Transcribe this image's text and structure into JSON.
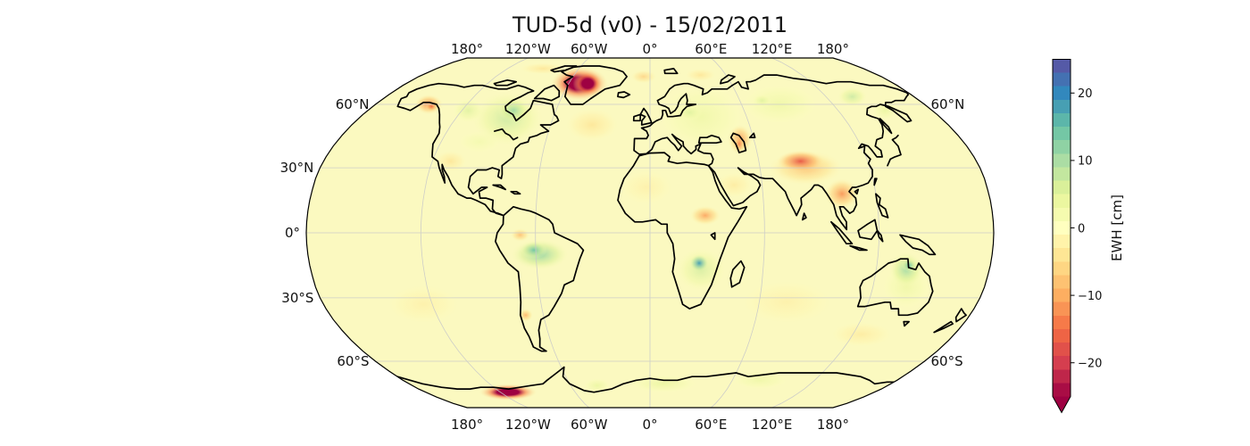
{
  "figure": {
    "title": "TUD-5d (v0) - 15/02/2011",
    "background": "#ffffff"
  },
  "map": {
    "projection": "Robinson",
    "base_color": "#fbf9c0",
    "graticule_color": "#c9c9c9",
    "coastline_color": "#000000",
    "lon_labels": [
      {
        "lon": -180,
        "text": "180°"
      },
      {
        "lon": -120,
        "text": "120°W"
      },
      {
        "lon": -60,
        "text": "60°W"
      },
      {
        "lon": 0,
        "text": "0°"
      },
      {
        "lon": 60,
        "text": "60°E"
      },
      {
        "lon": 120,
        "text": "120°E"
      },
      {
        "lon": 180,
        "text": "180°"
      }
    ],
    "left_lat_labels": [
      {
        "lat": 60,
        "text": "60°N"
      },
      {
        "lat": 30,
        "text": "30°N"
      },
      {
        "lat": 0,
        "text": "0°"
      },
      {
        "lat": -30,
        "text": "30°S"
      },
      {
        "lat": -60,
        "text": "60°S"
      }
    ],
    "right_lat_labels": [
      {
        "lat": 60,
        "text": "60°N"
      },
      {
        "lat": -60,
        "text": "60°S"
      }
    ],
    "graticule_parallels": [
      60,
      30,
      0,
      -30,
      -60
    ],
    "graticule_meridians": [
      -120,
      -60,
      0,
      60,
      120
    ]
  },
  "colorbar": {
    "label": "EWH [cm]",
    "vmin": -25,
    "vmax": 25,
    "extend": "min",
    "colormap_name": "Spectral_r",
    "spectral_anchors": [
      "#9e0142",
      "#d53e4f",
      "#f46d43",
      "#fdae61",
      "#fee08b",
      "#ffffbf",
      "#e6f598",
      "#abdda4",
      "#66c2a5",
      "#3288bd",
      "#5e4fa2"
    ],
    "ticks": [
      {
        "value": 20,
        "text": "20"
      },
      {
        "value": 10,
        "text": "10"
      },
      {
        "value": 0,
        "text": "0"
      },
      {
        "value": -10,
        "text": "−10"
      },
      {
        "value": -20,
        "text": "−20"
      }
    ]
  },
  "chart_data": {
    "type": "heatmap",
    "title": "TUD-5d (v0) - 15/02/2011",
    "variable": "EWH [cm]",
    "date": "15/02/2011",
    "projection": "Robinson",
    "value_range_cm": [
      -25,
      25
    ],
    "background_value_cm": 0,
    "regions": [
      {
        "name": "greenland-ice-sheet",
        "lon": -52,
        "lat": 71,
        "rx_deg": 21,
        "ry_deg": 9.5,
        "value_cm": -27
      },
      {
        "name": "greenland-core",
        "lon": -46,
        "lat": 71,
        "rx_deg": 11,
        "ry_deg": 7,
        "value_cm": -28
      },
      {
        "name": "gulf-of-alaska",
        "lon": -145,
        "lat": 60,
        "rx_deg": 9,
        "ry_deg": 5,
        "value_cm": -13
      },
      {
        "name": "gulf-of-alaska-core",
        "lon": -142,
        "lat": 59,
        "rx_deg": 4,
        "ry_deg": 2.5,
        "value_cm": -15
      },
      {
        "name": "hudson-bay-canada",
        "lon": -88,
        "lat": 53,
        "rx_deg": 22,
        "ry_deg": 13,
        "value_cm": 8
      },
      {
        "name": "hudson-bay-core",
        "lon": -87,
        "lat": 57,
        "rx_deg": 10,
        "ry_deg": 6,
        "value_cm": 11
      },
      {
        "name": "west-canada-green",
        "lon": -116,
        "lat": 57,
        "rx_deg": 10,
        "ry_deg": 6,
        "value_cm": 6
      },
      {
        "name": "us-plains-green",
        "lon": -98,
        "lat": 42,
        "rx_deg": 12,
        "ry_deg": 5,
        "value_cm": 3
      },
      {
        "name": "us-southwest-mexico",
        "lon": -110,
        "lat": 33,
        "rx_deg": 9,
        "ry_deg": 5,
        "value_cm": -5
      },
      {
        "name": "north-atlantic-orange",
        "lon": -35,
        "lat": 50,
        "rx_deg": 16,
        "ry_deg": 8,
        "value_cm": -5
      },
      {
        "name": "greenland-sea-orange",
        "lon": -5,
        "lat": 75,
        "rx_deg": 10,
        "ry_deg": 4,
        "value_cm": -7
      },
      {
        "name": "barents-orange",
        "lon": 40,
        "lat": 76,
        "rx_deg": 12,
        "ry_deg": 4,
        "value_cm": -5
      },
      {
        "name": "arctic-canada-orange",
        "lon": -90,
        "lat": 80,
        "rx_deg": 20,
        "ry_deg": 4,
        "value_cm": -5
      },
      {
        "name": "europe-green",
        "lon": 32,
        "lat": 54,
        "rx_deg": 26,
        "ry_deg": 16,
        "value_cm": 4
      },
      {
        "name": "baltic-teal",
        "lon": 25,
        "lat": 56,
        "rx_deg": 8,
        "ry_deg": 4,
        "value_cm": 6
      },
      {
        "name": "west-siberia-green",
        "lon": 85,
        "lat": 60,
        "rx_deg": 25,
        "ry_deg": 10,
        "value_cm": 4
      },
      {
        "name": "ob-teal",
        "lon": 75,
        "lat": 62,
        "rx_deg": 6,
        "ry_deg": 3,
        "value_cm": 6
      },
      {
        "name": "ne-siberia-teal",
        "lon": 138,
        "lat": 64,
        "rx_deg": 10,
        "ry_deg": 5,
        "value_cm": 8
      },
      {
        "name": "okhotsk-green",
        "lon": 150,
        "lat": 57,
        "rx_deg": 8,
        "ry_deg": 5,
        "value_cm": 5
      },
      {
        "name": "caspian-orange",
        "lon": 52,
        "lat": 43,
        "rx_deg": 7,
        "ry_deg": 7,
        "value_cm": -12
      },
      {
        "name": "caspian-core",
        "lon": 51,
        "lat": 41,
        "rx_deg": 3,
        "ry_deg": 4,
        "value_cm": -13
      },
      {
        "name": "tibet-north-india",
        "lon": 85,
        "lat": 30,
        "rx_deg": 20,
        "ry_deg": 8,
        "value_cm": -9
      },
      {
        "name": "tibet-core",
        "lon": 83,
        "lat": 33,
        "rx_deg": 13,
        "ry_deg": 5,
        "value_cm": -17
      },
      {
        "name": "se-asia-orange",
        "lon": 102,
        "lat": 18,
        "rx_deg": 9,
        "ry_deg": 7,
        "value_cm": -12
      },
      {
        "name": "central-africa-orange",
        "lon": 29,
        "lat": 8,
        "rx_deg": 8,
        "ry_deg": 4.5,
        "value_cm": -11
      },
      {
        "name": "sahara-tint",
        "lon": -2,
        "lat": 21,
        "rx_deg": 14,
        "ry_deg": 8,
        "value_cm": -3
      },
      {
        "name": "arabia-tint",
        "lon": 45,
        "lat": 22,
        "rx_deg": 10,
        "ry_deg": 6,
        "value_cm": -4
      },
      {
        "name": "southern-africa-green",
        "lon": 27,
        "lat": -17,
        "rx_deg": 13,
        "ry_deg": 10,
        "value_cm": 7
      },
      {
        "name": "zambia-blue-core",
        "lon": 26,
        "lat": -14,
        "rx_deg": 5,
        "ry_deg": 4,
        "value_cm": 18
      },
      {
        "name": "amazon-teal",
        "lon": -58,
        "lat": -10,
        "rx_deg": 15,
        "ry_deg": 7,
        "value_cm": 12
      },
      {
        "name": "amazon-core",
        "lon": -61,
        "lat": -8,
        "rx_deg": 7,
        "ry_deg": 4,
        "value_cm": 14
      },
      {
        "name": "nw-amazon-orange",
        "lon": -68,
        "lat": -1,
        "rx_deg": 5,
        "ry_deg": 3,
        "value_cm": -9
      },
      {
        "name": "argentina-orange",
        "lon": -70,
        "lat": -38,
        "rx_deg": 4,
        "ry_deg": 3,
        "value_cm": -10
      },
      {
        "name": "australia-green",
        "lon": 138,
        "lat": -25,
        "rx_deg": 13,
        "ry_deg": 10,
        "value_cm": 4
      },
      {
        "name": "north-australia-teal",
        "lon": 136,
        "lat": -17,
        "rx_deg": 9,
        "ry_deg": 8,
        "value_cm": 11
      },
      {
        "name": "carpentaria-core",
        "lon": 137,
        "lat": -15,
        "rx_deg": 4,
        "ry_deg": 3,
        "value_cm": 14
      },
      {
        "name": "indian-ocean-tint",
        "lon": 75,
        "lat": -32,
        "rx_deg": 25,
        "ry_deg": 10,
        "value_cm": -3
      },
      {
        "name": "south-pacific-tint",
        "lon": -125,
        "lat": -33,
        "rx_deg": 20,
        "ry_deg": 9,
        "value_cm": -3
      },
      {
        "name": "south-of-australia-tint",
        "lon": 125,
        "lat": -47,
        "rx_deg": 18,
        "ry_deg": 6,
        "value_cm": -4
      },
      {
        "name": "west-antarctica-crimson",
        "lon": -114,
        "lat": -77,
        "rx_deg": 23,
        "ry_deg": 5,
        "value_cm": -27
      },
      {
        "name": "east-antarctica-green-1",
        "lon": 10,
        "lat": -72,
        "rx_deg": 25,
        "ry_deg": 5,
        "value_cm": 5
      },
      {
        "name": "east-antarctica-green-2",
        "lon": 80,
        "lat": -70,
        "rx_deg": 20,
        "ry_deg": 5,
        "value_cm": 4
      },
      {
        "name": "weddell-green",
        "lon": -40,
        "lat": -73,
        "rx_deg": 10,
        "ry_deg": 4,
        "value_cm": 5
      }
    ]
  }
}
